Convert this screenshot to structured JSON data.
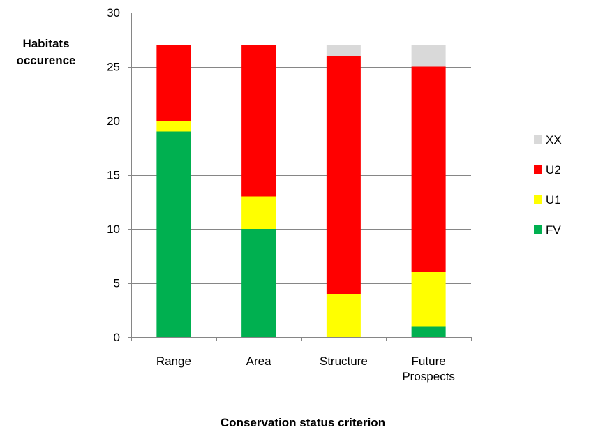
{
  "chart_data": {
    "type": "bar",
    "stacked": true,
    "categories": [
      "Range",
      "Area",
      "Structure",
      "Future Prospects"
    ],
    "category_lines": [
      [
        "Range"
      ],
      [
        "Area"
      ],
      [
        "Structure"
      ],
      [
        "Future",
        "Prospects"
      ]
    ],
    "series": [
      {
        "name": "FV",
        "color": "#00b050",
        "values": [
          19,
          10,
          0,
          1
        ]
      },
      {
        "name": "U1",
        "color": "#ffff00",
        "values": [
          1,
          3,
          4,
          5
        ]
      },
      {
        "name": "U2",
        "color": "#ff0000",
        "values": [
          7,
          14,
          22,
          19
        ]
      },
      {
        "name": "XX",
        "color": "#d9d9d9",
        "values": [
          0,
          0,
          1,
          2
        ]
      }
    ],
    "legend_order": [
      "XX",
      "U2",
      "U1",
      "FV"
    ],
    "legend_position": "right",
    "ylabel_lines": [
      "Habitats",
      "occurence"
    ],
    "xlabel": "Conservation status criterion",
    "ylim": [
      0,
      30
    ],
    "yticks": [
      0,
      5,
      10,
      15,
      20,
      25,
      30
    ],
    "grid": true,
    "gridline_color": "#868686"
  }
}
